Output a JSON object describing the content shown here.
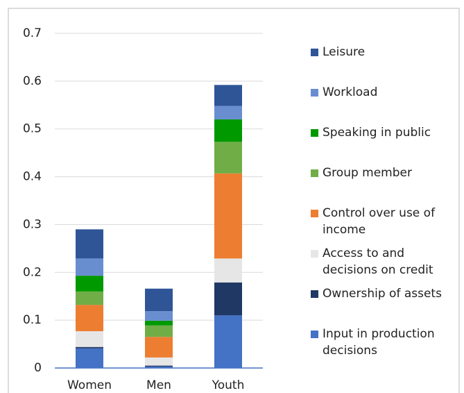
{
  "chart_data": {
    "type": "stacked_bar",
    "categories": [
      "Women",
      "Men",
      "Youth"
    ],
    "series": [
      {
        "name": "Input in production decisions",
        "color": "#4472c4",
        "values": [
          0.041,
          0.003,
          0.11
        ]
      },
      {
        "name": "Ownership of assets",
        "color": "#1f3864",
        "values": [
          0.003,
          0.002,
          0.069
        ]
      },
      {
        "name": "Access to and decisions on credit",
        "color": "#e7e6e6",
        "values": [
          0.033,
          0.017,
          0.05
        ]
      },
      {
        "name": "Control over use of income",
        "color": "#ed7d31",
        "values": [
          0.055,
          0.043,
          0.178
        ]
      },
      {
        "name": "Group member",
        "color": "#70ad47",
        "values": [
          0.028,
          0.024,
          0.066
        ]
      },
      {
        "name": "Speaking in public",
        "color": "#009900",
        "values": [
          0.033,
          0.01,
          0.047
        ]
      },
      {
        "name": "Workload",
        "color": "#698ed0",
        "values": [
          0.036,
          0.02,
          0.028
        ]
      },
      {
        "name": "Leisure",
        "color": "#2f5597",
        "values": [
          0.061,
          0.047,
          0.044
        ]
      }
    ],
    "ylim": [
      0,
      0.7
    ],
    "yticks": [
      0,
      0.1,
      0.2,
      0.3,
      0.4,
      0.5,
      0.6,
      0.7
    ],
    "grid": true
  }
}
